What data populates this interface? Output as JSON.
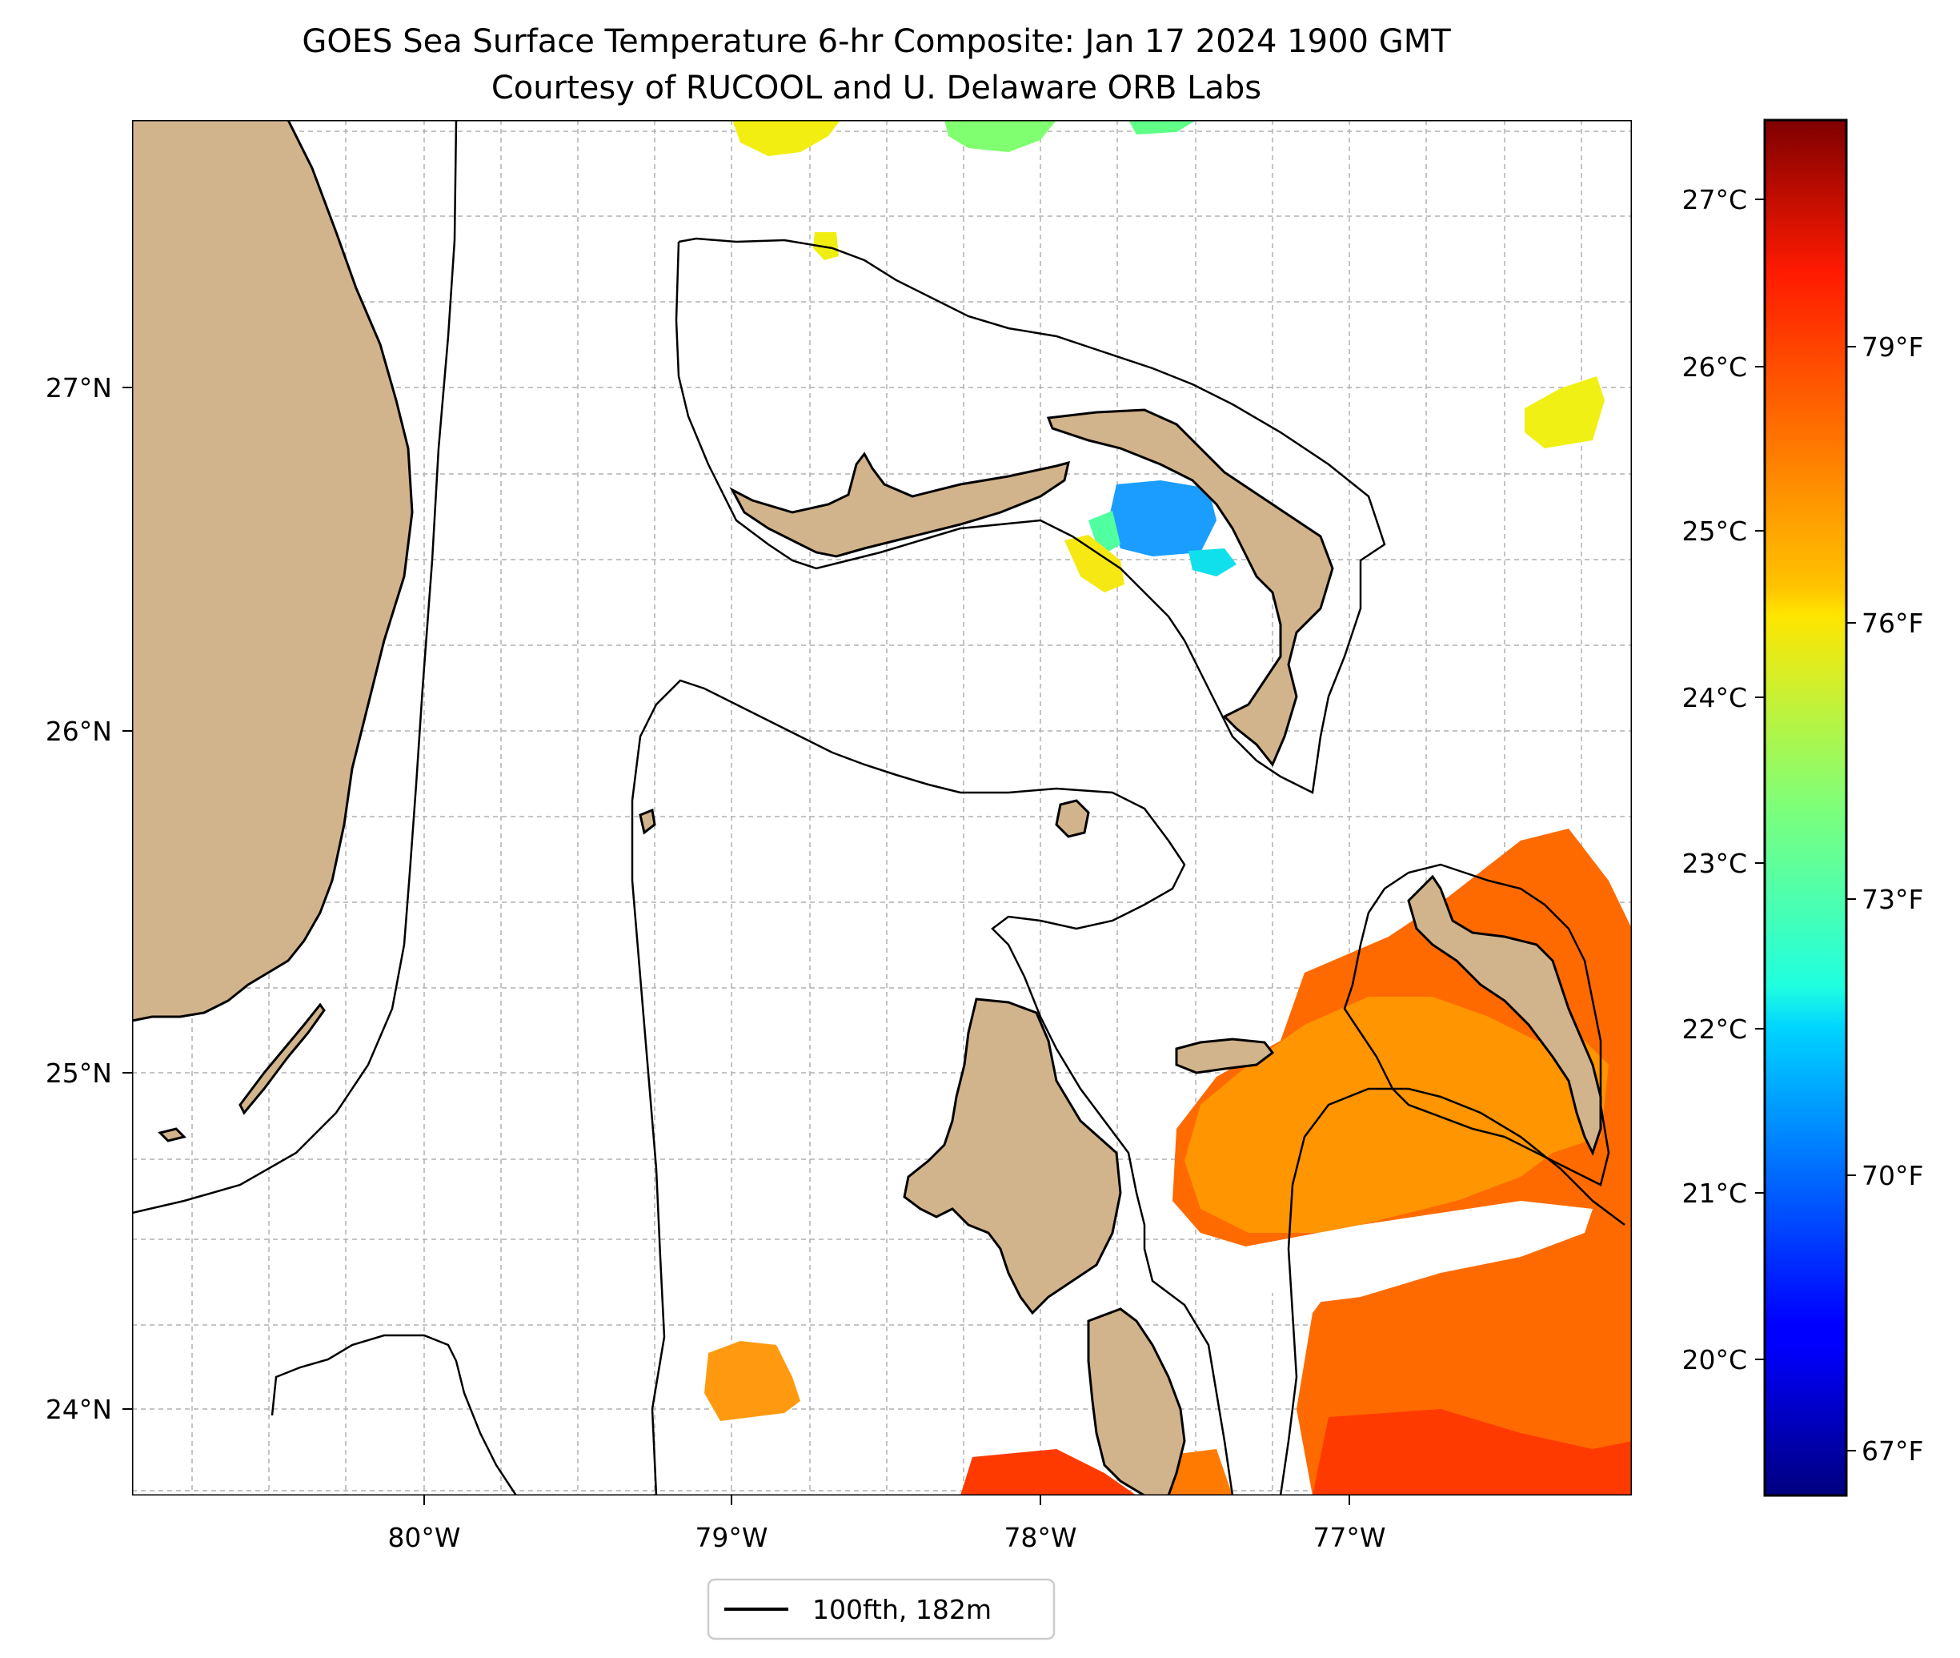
{
  "title": {
    "line1": "GOES Sea Surface Temperature 6-hr Composite: Jan 17 2024 1900 GMT",
    "line2": "Courtesy of RUCOOL and U. Delaware ORB Labs"
  },
  "map": {
    "lon_range": [
      -80.95,
      -76.1
    ],
    "lat_range": [
      23.74,
      27.8
    ],
    "lon_ticks": [
      "80°W",
      "79°W",
      "78°W",
      "77°W"
    ],
    "lat_ticks": [
      "27°N",
      "26°N",
      "25°N",
      "24°N"
    ],
    "land_color": "#d2b48c",
    "features": [
      "Florida",
      "Grand Bahama",
      "Great Abaco",
      "Andros",
      "Berry Islands",
      "Bimini",
      "New Providence",
      "Eleuthera",
      "Exuma Cays"
    ]
  },
  "colorbar": {
    "colormap": "jet",
    "celsius_ticks": [
      "27°C",
      "26°C",
      "25°C",
      "24°C",
      "23°C",
      "22°C",
      "21°C",
      "20°C"
    ],
    "fahrenheit_ticks": [
      "79°F",
      "76°F",
      "73°F",
      "70°F",
      "67°F"
    ]
  },
  "legend": {
    "label": "100fth, 182m"
  }
}
